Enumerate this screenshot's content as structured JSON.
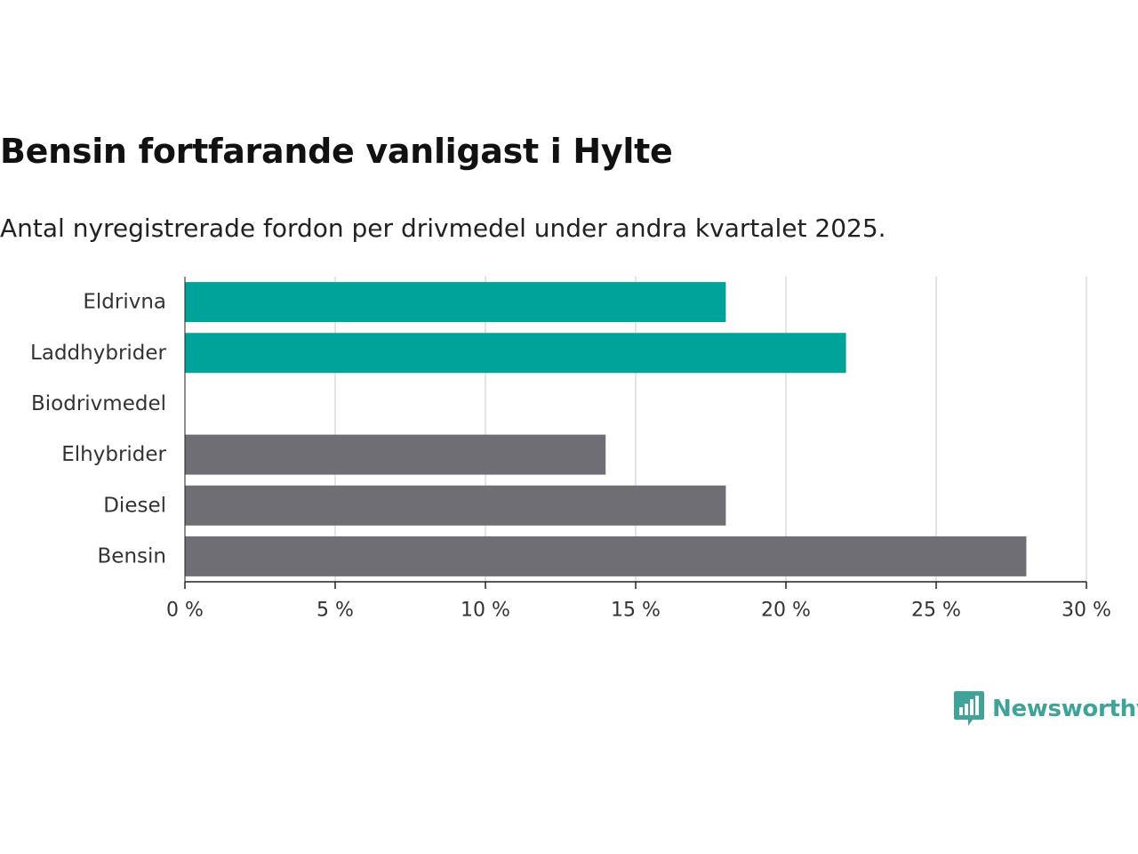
{
  "header": {
    "title": "Bensin fortfarande vanligast i Hylte",
    "subtitle": "Antal nyregistrerade fordon per drivmedel under andra kvartalet 2025."
  },
  "brand": {
    "name": "Newsworthy",
    "color": "#3fa39a"
  },
  "chart_data": {
    "type": "bar",
    "orientation": "horizontal",
    "title": "Bensin fortfarande vanligast i Hylte",
    "subtitle": "Antal nyregistrerade fordon per drivmedel under andra kvartalet 2025.",
    "categories": [
      "Eldrivna",
      "Laddhybrider",
      "Biodrivmedel",
      "Elhybrider",
      "Diesel",
      "Bensin"
    ],
    "values": [
      18,
      22,
      0,
      14,
      18,
      28
    ],
    "colors": [
      "#00a39a",
      "#00a39a",
      "#00a39a",
      "#6f6e75",
      "#6f6e75",
      "#6f6e75"
    ],
    "unit": "%",
    "xlim": [
      0,
      30
    ],
    "xticks": [
      0,
      5,
      10,
      15,
      20,
      25,
      30
    ],
    "xtick_labels": [
      "0 %",
      "5 %",
      "10 %",
      "15 %",
      "20 %",
      "25 %",
      "30 %"
    ],
    "xlabel": "",
    "ylabel": "",
    "grid": "vertical"
  }
}
